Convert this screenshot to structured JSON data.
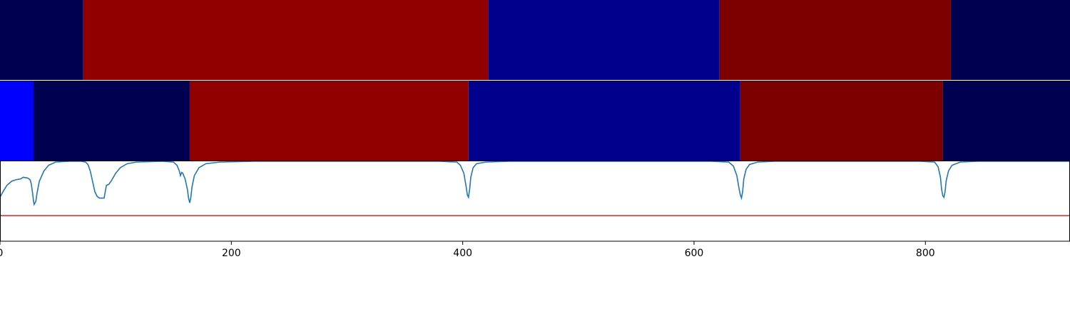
{
  "chart_data": {
    "type": "heatmap",
    "x_ticks": [
      0,
      200,
      400,
      600,
      800
    ],
    "xlim": [
      0,
      925
    ],
    "track_1": {
      "segments": [
        {
          "start": 0,
          "end": 72,
          "color": "#000050"
        },
        {
          "start": 72,
          "end": 422,
          "color": "#910000"
        },
        {
          "start": 422,
          "end": 622,
          "color": "#00008c"
        },
        {
          "start": 622,
          "end": 822,
          "color": "#7d0000"
        },
        {
          "start": 822,
          "end": 925,
          "color": "#000050"
        }
      ]
    },
    "track_2": {
      "segments": [
        {
          "start": 0,
          "end": 29,
          "color": "#0000ff"
        },
        {
          "start": 29,
          "end": 164,
          "color": "#000050"
        },
        {
          "start": 164,
          "end": 405,
          "color": "#910000"
        },
        {
          "start": 405,
          "end": 640,
          "color": "#00008c"
        },
        {
          "start": 640,
          "end": 815,
          "color": "#7d0000"
        },
        {
          "start": 815,
          "end": 925,
          "color": "#000050"
        }
      ]
    },
    "signal": {
      "color": "#1f77b4",
      "ylim": [
        0,
        1
      ],
      "threshold": 0.32,
      "threshold_color": "#d62728",
      "points": [
        [
          0,
          0.55
        ],
        [
          3,
          0.63
        ],
        [
          6,
          0.7
        ],
        [
          10,
          0.75
        ],
        [
          14,
          0.77
        ],
        [
          18,
          0.78
        ],
        [
          20,
          0.8
        ],
        [
          24,
          0.79
        ],
        [
          26,
          0.77
        ],
        [
          27,
          0.72
        ],
        [
          28,
          0.62
        ],
        [
          29,
          0.5
        ],
        [
          29.5,
          0.46
        ],
        [
          31,
          0.5
        ],
        [
          32,
          0.6
        ],
        [
          34,
          0.75
        ],
        [
          38,
          0.88
        ],
        [
          42,
          0.95
        ],
        [
          48,
          0.99
        ],
        [
          60,
          1.0
        ],
        [
          70,
          1.0
        ],
        [
          74,
          0.99
        ],
        [
          76,
          0.96
        ],
        [
          78,
          0.88
        ],
        [
          80,
          0.75
        ],
        [
          82,
          0.62
        ],
        [
          84,
          0.56
        ],
        [
          86,
          0.54
        ],
        [
          88,
          0.54
        ],
        [
          90,
          0.54
        ],
        [
          92,
          0.7
        ],
        [
          94,
          0.71
        ],
        [
          96,
          0.75
        ],
        [
          98,
          0.8
        ],
        [
          100,
          0.85
        ],
        [
          104,
          0.92
        ],
        [
          110,
          0.97
        ],
        [
          118,
          0.99
        ],
        [
          140,
          1.0
        ],
        [
          150,
          0.99
        ],
        [
          153,
          0.95
        ],
        [
          155,
          0.88
        ],
        [
          156,
          0.82
        ],
        [
          157,
          0.86
        ],
        [
          158,
          0.85
        ],
        [
          160,
          0.78
        ],
        [
          162,
          0.65
        ],
        [
          163,
          0.54
        ],
        [
          164,
          0.48
        ],
        [
          165,
          0.55
        ],
        [
          166,
          0.68
        ],
        [
          168,
          0.82
        ],
        [
          172,
          0.92
        ],
        [
          178,
          0.97
        ],
        [
          190,
          0.99
        ],
        [
          220,
          1.0
        ],
        [
          380,
          1.0
        ],
        [
          395,
          0.99
        ],
        [
          398,
          0.95
        ],
        [
          401,
          0.85
        ],
        [
          403,
          0.68
        ],
        [
          404,
          0.58
        ],
        [
          405,
          0.55
        ],
        [
          406,
          0.65
        ],
        [
          407,
          0.8
        ],
        [
          409,
          0.92
        ],
        [
          412,
          0.97
        ],
        [
          420,
          0.99
        ],
        [
          440,
          1.0
        ],
        [
          615,
          1.0
        ],
        [
          630,
          0.99
        ],
        [
          634,
          0.94
        ],
        [
          637,
          0.82
        ],
        [
          639,
          0.65
        ],
        [
          640,
          0.58
        ],
        [
          641,
          0.54
        ],
        [
          642,
          0.62
        ],
        [
          643,
          0.78
        ],
        [
          645,
          0.9
        ],
        [
          648,
          0.96
        ],
        [
          655,
          0.99
        ],
        [
          670,
          1.0
        ],
        [
          795,
          1.0
        ],
        [
          808,
          0.99
        ],
        [
          811,
          0.93
        ],
        [
          813,
          0.8
        ],
        [
          814,
          0.65
        ],
        [
          815,
          0.57
        ],
        [
          816,
          0.55
        ],
        [
          817,
          0.62
        ],
        [
          818,
          0.76
        ],
        [
          820,
          0.88
        ],
        [
          823,
          0.95
        ],
        [
          830,
          0.99
        ],
        [
          845,
          1.0
        ],
        [
          925,
          1.0
        ]
      ]
    }
  }
}
